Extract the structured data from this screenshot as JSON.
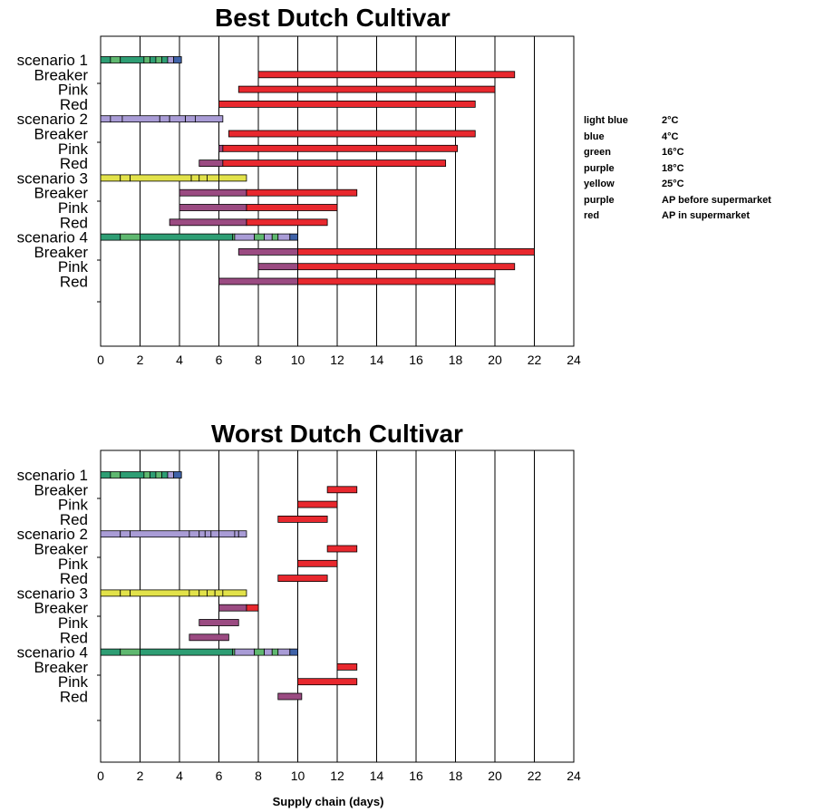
{
  "legend": [
    {
      "color_name": "light blue",
      "meaning": "2°C"
    },
    {
      "color_name": "blue",
      "meaning": "4°C"
    },
    {
      "color_name": "green",
      "meaning": "16°C"
    },
    {
      "color_name": "purple",
      "meaning": "18°C"
    },
    {
      "color_name": "yellow",
      "meaning": "25°C"
    },
    {
      "color_name": "purple",
      "meaning": "AP before supermarket"
    },
    {
      "color_name": "red",
      "meaning": "AP in supermarket"
    }
  ],
  "colors": {
    "light_blue": "#a99cd6",
    "blue": "#3f62a8",
    "green": "#2e9e74",
    "green_light": "#5fb870",
    "purple": "#9b4b82",
    "yellow": "#e2e24a",
    "red": "#e8282e"
  },
  "chart_data": [
    {
      "type": "bar",
      "title": "Best Dutch Cultivar",
      "xlabel": "",
      "xlim": [
        0,
        24
      ],
      "xticks": [
        0,
        2,
        4,
        6,
        8,
        10,
        12,
        14,
        16,
        18,
        20,
        22,
        24
      ],
      "categories": [
        "scenario 1",
        "Breaker",
        "Pink",
        "Red",
        "scenario 2",
        "Breaker",
        "Pink",
        "Red",
        "scenario 3",
        "Breaker",
        "Pink",
        "Red",
        "scenario 4",
        "Breaker",
        "Pink",
        "Red"
      ],
      "rows": [
        {
          "label": "scenario 1",
          "segments": [
            {
              "color": "green",
              "start": 0,
              "end": 0.5
            },
            {
              "color": "green_light",
              "start": 0.5,
              "end": 1
            },
            {
              "color": "green",
              "start": 1,
              "end": 2.2
            },
            {
              "color": "green_light",
              "start": 2.2,
              "end": 2.5
            },
            {
              "color": "green",
              "start": 2.5,
              "end": 2.8
            },
            {
              "color": "green_light",
              "start": 2.8,
              "end": 3.1
            },
            {
              "color": "green",
              "start": 3.1,
              "end": 3.4
            },
            {
              "color": "light_blue",
              "start": 3.4,
              "end": 3.7
            },
            {
              "color": "blue",
              "start": 3.7,
              "end": 4.1
            }
          ]
        },
        {
          "label": "Breaker",
          "segments": [
            {
              "color": "red",
              "start": 8,
              "end": 21
            }
          ]
        },
        {
          "label": "Pink",
          "segments": [
            {
              "color": "red",
              "start": 7,
              "end": 20
            }
          ]
        },
        {
          "label": "Red",
          "segments": [
            {
              "color": "red",
              "start": 6,
              "end": 19
            }
          ]
        },
        {
          "label": "scenario 2",
          "segments": [
            {
              "color": "light_blue",
              "start": 0,
              "end": 0.5
            },
            {
              "color": "light_blue",
              "start": 0.5,
              "end": 1.1
            },
            {
              "color": "light_blue",
              "start": 1.1,
              "end": 3
            },
            {
              "color": "light_blue",
              "start": 3,
              "end": 3.5
            },
            {
              "color": "light_blue",
              "start": 3.5,
              "end": 4.3
            },
            {
              "color": "light_blue",
              "start": 4.3,
              "end": 4.8
            },
            {
              "color": "light_blue",
              "start": 4.8,
              "end": 6.2
            }
          ]
        },
        {
          "label": "Breaker",
          "segments": [
            {
              "color": "red",
              "start": 6.5,
              "end": 19
            }
          ]
        },
        {
          "label": "Pink",
          "segments": [
            {
              "color": "purple",
              "start": 6,
              "end": 6.2
            },
            {
              "color": "red",
              "start": 6.2,
              "end": 18.1
            }
          ]
        },
        {
          "label": "Red",
          "segments": [
            {
              "color": "purple",
              "start": 5,
              "end": 6.2
            },
            {
              "color": "red",
              "start": 6.2,
              "end": 17.5
            }
          ]
        },
        {
          "label": "scenario 3",
          "segments": [
            {
              "color": "yellow",
              "start": 0,
              "end": 1
            },
            {
              "color": "yellow",
              "start": 1,
              "end": 1.5
            },
            {
              "color": "yellow",
              "start": 1.5,
              "end": 4.6
            },
            {
              "color": "yellow",
              "start": 4.6,
              "end": 5
            },
            {
              "color": "yellow",
              "start": 5,
              "end": 5.4
            },
            {
              "color": "yellow",
              "start": 5.4,
              "end": 6
            },
            {
              "color": "yellow",
              "start": 6,
              "end": 7.4
            }
          ]
        },
        {
          "label": "Breaker",
          "segments": [
            {
              "color": "purple",
              "start": 4,
              "end": 7.4
            },
            {
              "color": "red",
              "start": 7.4,
              "end": 13
            }
          ]
        },
        {
          "label": "Pink",
          "segments": [
            {
              "color": "purple",
              "start": 4,
              "end": 7.4
            },
            {
              "color": "red",
              "start": 7.4,
              "end": 12
            }
          ]
        },
        {
          "label": "Red",
          "segments": [
            {
              "color": "purple",
              "start": 3.5,
              "end": 7.4
            },
            {
              "color": "red",
              "start": 7.4,
              "end": 11.5
            }
          ]
        },
        {
          "label": "scenario 4",
          "segments": [
            {
              "color": "green",
              "start": 0,
              "end": 1
            },
            {
              "color": "green_light",
              "start": 1,
              "end": 2
            },
            {
              "color": "green",
              "start": 2,
              "end": 6.7
            },
            {
              "color": "green_light",
              "start": 6.7,
              "end": 6.8
            },
            {
              "color": "light_blue",
              "start": 6.8,
              "end": 7.8
            },
            {
              "color": "green_light",
              "start": 7.8,
              "end": 8.3
            },
            {
              "color": "light_blue",
              "start": 8.3,
              "end": 8.7
            },
            {
              "color": "green_light",
              "start": 8.7,
              "end": 9
            },
            {
              "color": "light_blue",
              "start": 9,
              "end": 9.6
            },
            {
              "color": "blue",
              "start": 9.6,
              "end": 10
            }
          ]
        },
        {
          "label": "Breaker",
          "segments": [
            {
              "color": "purple",
              "start": 7,
              "end": 10
            },
            {
              "color": "red",
              "start": 10,
              "end": 22
            }
          ]
        },
        {
          "label": "Pink",
          "segments": [
            {
              "color": "purple",
              "start": 8,
              "end": 10
            },
            {
              "color": "red",
              "start": 10,
              "end": 21
            }
          ]
        },
        {
          "label": "Red",
          "segments": [
            {
              "color": "purple",
              "start": 6,
              "end": 10
            },
            {
              "color": "red",
              "start": 10,
              "end": 20
            }
          ]
        }
      ]
    },
    {
      "type": "bar",
      "title": "Worst Dutch Cultivar",
      "xlabel": "Supply chain (days)",
      "xlim": [
        0,
        24
      ],
      "xticks": [
        0,
        2,
        4,
        6,
        8,
        10,
        12,
        14,
        16,
        18,
        20,
        22,
        24
      ],
      "categories": [
        "scenario 1",
        "Breaker",
        "Pink",
        "Red",
        "scenario 2",
        "Breaker",
        "Pink",
        "Red",
        "scenario 3",
        "Breaker",
        "Pink",
        "Red",
        "scenario 4",
        "Breaker",
        "Pink",
        "Red"
      ],
      "rows": [
        {
          "label": "scenario 1",
          "segments": [
            {
              "color": "green",
              "start": 0,
              "end": 0.5
            },
            {
              "color": "green_light",
              "start": 0.5,
              "end": 1
            },
            {
              "color": "green",
              "start": 1,
              "end": 2.2
            },
            {
              "color": "green_light",
              "start": 2.2,
              "end": 2.5
            },
            {
              "color": "green",
              "start": 2.5,
              "end": 2.8
            },
            {
              "color": "green_light",
              "start": 2.8,
              "end": 3.1
            },
            {
              "color": "green",
              "start": 3.1,
              "end": 3.4
            },
            {
              "color": "light_blue",
              "start": 3.4,
              "end": 3.7
            },
            {
              "color": "blue",
              "start": 3.7,
              "end": 4.1
            }
          ]
        },
        {
          "label": "Breaker",
          "segments": [
            {
              "color": "red",
              "start": 11.5,
              "end": 13
            }
          ]
        },
        {
          "label": "Pink",
          "segments": [
            {
              "color": "red",
              "start": 10,
              "end": 12
            }
          ]
        },
        {
          "label": "Red",
          "segments": [
            {
              "color": "red",
              "start": 9,
              "end": 11.5
            }
          ]
        },
        {
          "label": "scenario 2",
          "segments": [
            {
              "color": "light_blue",
              "start": 0,
              "end": 1
            },
            {
              "color": "light_blue",
              "start": 1,
              "end": 1.5
            },
            {
              "color": "light_blue",
              "start": 1.5,
              "end": 4.5
            },
            {
              "color": "light_blue",
              "start": 4.5,
              "end": 5
            },
            {
              "color": "light_blue",
              "start": 5,
              "end": 5.3
            },
            {
              "color": "light_blue",
              "start": 5.3,
              "end": 5.6
            },
            {
              "color": "light_blue",
              "start": 5.6,
              "end": 6
            },
            {
              "color": "light_blue",
              "start": 6,
              "end": 6.8
            },
            {
              "color": "light_blue",
              "start": 6.8,
              "end": 7
            },
            {
              "color": "light_blue",
              "start": 7,
              "end": 7.4
            }
          ]
        },
        {
          "label": "Breaker",
          "segments": [
            {
              "color": "red",
              "start": 11.5,
              "end": 13
            }
          ]
        },
        {
          "label": "Pink",
          "segments": [
            {
              "color": "red",
              "start": 10,
              "end": 12
            }
          ]
        },
        {
          "label": "Red",
          "segments": [
            {
              "color": "red",
              "start": 9,
              "end": 11.5
            }
          ]
        },
        {
          "label": "scenario 3",
          "segments": [
            {
              "color": "yellow",
              "start": 0,
              "end": 1
            },
            {
              "color": "yellow",
              "start": 1,
              "end": 1.5
            },
            {
              "color": "yellow",
              "start": 1.5,
              "end": 4.5
            },
            {
              "color": "yellow",
              "start": 4.5,
              "end": 5
            },
            {
              "color": "yellow",
              "start": 5,
              "end": 5.4
            },
            {
              "color": "yellow",
              "start": 5.4,
              "end": 5.8
            },
            {
              "color": "yellow",
              "start": 5.8,
              "end": 6.2
            },
            {
              "color": "yellow",
              "start": 6.2,
              "end": 7.4
            }
          ]
        },
        {
          "label": "Breaker",
          "segments": [
            {
              "color": "purple",
              "start": 6,
              "end": 7.4
            },
            {
              "color": "red",
              "start": 7.4,
              "end": 8
            }
          ]
        },
        {
          "label": "Pink",
          "segments": [
            {
              "color": "purple",
              "start": 5,
              "end": 7
            }
          ]
        },
        {
          "label": "Red",
          "segments": [
            {
              "color": "purple",
              "start": 4.5,
              "end": 6.5
            }
          ]
        },
        {
          "label": "scenario 4",
          "segments": [
            {
              "color": "green",
              "start": 0,
              "end": 1
            },
            {
              "color": "green_light",
              "start": 1,
              "end": 2
            },
            {
              "color": "green",
              "start": 2,
              "end": 6.7
            },
            {
              "color": "green_light",
              "start": 6.7,
              "end": 6.8
            },
            {
              "color": "light_blue",
              "start": 6.8,
              "end": 7.8
            },
            {
              "color": "green_light",
              "start": 7.8,
              "end": 8.3
            },
            {
              "color": "light_blue",
              "start": 8.3,
              "end": 8.7
            },
            {
              "color": "green_light",
              "start": 8.7,
              "end": 9
            },
            {
              "color": "light_blue",
              "start": 9,
              "end": 9.6
            },
            {
              "color": "blue",
              "start": 9.6,
              "end": 10
            }
          ]
        },
        {
          "label": "Breaker",
          "segments": [
            {
              "color": "red",
              "start": 12,
              "end": 13
            }
          ]
        },
        {
          "label": "Pink",
          "segments": [
            {
              "color": "red",
              "start": 10,
              "end": 13
            }
          ]
        },
        {
          "label": "Red",
          "segments": [
            {
              "color": "purple",
              "start": 9,
              "end": 10.2
            }
          ]
        }
      ]
    }
  ]
}
